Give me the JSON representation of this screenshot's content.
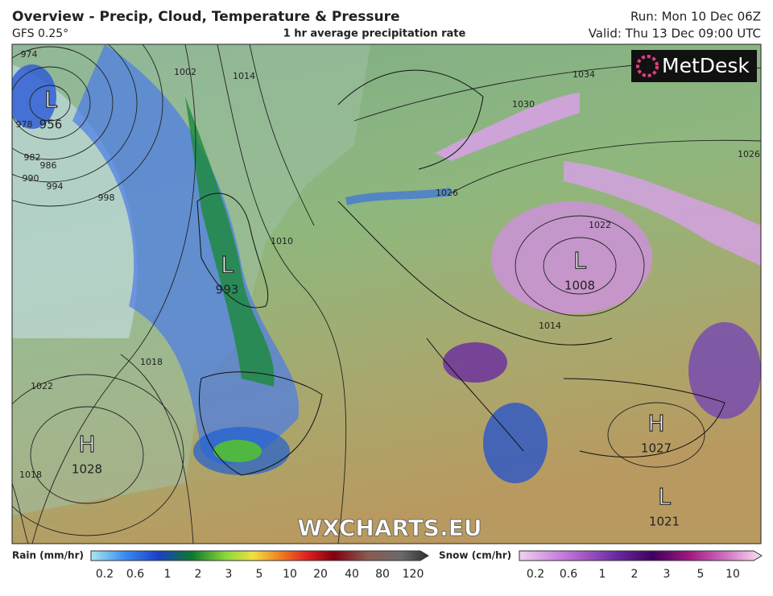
{
  "header": {
    "title": "Overview - Precip, Cloud, Temperature & Pressure",
    "model": "GFS 0.25°",
    "subtitle": "1 hr average precipitation rate",
    "run": "Run: Mon 10 Dec 06Z",
    "valid": "Valid: Thu 13 Dec 09:00 UTC"
  },
  "logo": "MetDesk",
  "watermark": "WXCHARTS.EU",
  "pressure_centers": [
    {
      "symbol": "L",
      "value": 956
    },
    {
      "symbol": "L",
      "value": 993
    },
    {
      "symbol": "L",
      "value": 1008
    },
    {
      "symbol": "H",
      "value": 1028
    },
    {
      "symbol": "H",
      "value": 1027
    },
    {
      "symbol": "L",
      "value": 1021
    }
  ],
  "isobar_labels": [
    974,
    978,
    982,
    986,
    990,
    994,
    998,
    1002,
    1014,
    1010,
    1018,
    1022,
    1026,
    1030,
    1034,
    1026,
    1022,
    1014,
    1018
  ],
  "legend": {
    "rain": {
      "title": "Rain (mm/hr)",
      "labels": [
        0.2,
        0.6,
        1,
        2,
        3,
        5,
        10,
        20,
        40,
        80,
        120
      ]
    },
    "snow": {
      "title": "Snow (cm/hr)",
      "labels": [
        0.2,
        0.6,
        1,
        2,
        3,
        5,
        10
      ]
    }
  }
}
